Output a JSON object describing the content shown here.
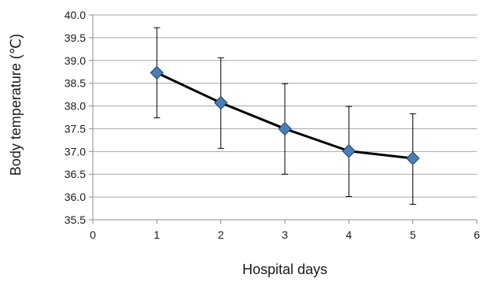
{
  "chart_data": {
    "type": "line",
    "title": "",
    "xlabel": "Hospital days",
    "ylabel": "Body temperature (℃)",
    "xlim": [
      0,
      6
    ],
    "ylim": [
      35.5,
      40.0
    ],
    "x_ticks": [
      0,
      1,
      2,
      3,
      4,
      5,
      6
    ],
    "y_ticks": [
      35.5,
      36.0,
      36.5,
      37.0,
      37.5,
      38.0,
      38.5,
      39.0,
      39.5,
      40.0
    ],
    "grid": true,
    "legend": "none",
    "line_color": "#000000",
    "marker": "diamond",
    "marker_color": "#4a7fb5",
    "series": [
      {
        "x": [
          1,
          2,
          3,
          4,
          5
        ],
        "values": [
          38.73,
          38.07,
          37.5,
          37.01,
          36.85
        ],
        "error_low": [
          37.74,
          37.07,
          36.5,
          36.01,
          35.84
        ],
        "error_high": [
          39.72,
          39.06,
          38.49,
          37.99,
          37.83
        ]
      }
    ]
  }
}
